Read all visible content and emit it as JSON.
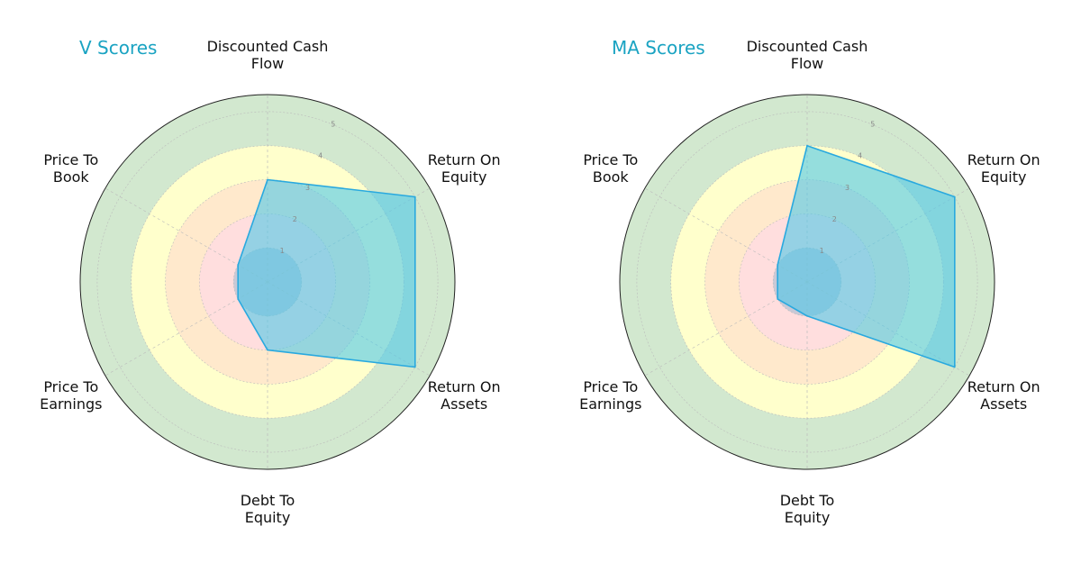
{
  "chart_data": [
    {
      "type": "radar",
      "title": "V Scores",
      "axes": [
        "Discounted Cash\nFlow",
        "Return On\nEquity",
        "Return On\nAssets",
        "Debt To\nEquity",
        "Price To\nEarnings",
        "Price To\nBook"
      ],
      "values": [
        3,
        5,
        5,
        2,
        1,
        1
      ],
      "rlim": [
        0,
        5
      ],
      "rticks": [
        1,
        2,
        3,
        4,
        5
      ],
      "bands": [
        {
          "from": 0,
          "to": 1,
          "color": "#c9c9d6"
        },
        {
          "from": 1,
          "to": 2,
          "color": "#ffdede"
        },
        {
          "from": 2,
          "to": 3,
          "color": "#ffe9cc"
        },
        {
          "from": 3,
          "to": 4,
          "color": "#ffffcc"
        },
        {
          "from": 4,
          "to": 5.5,
          "color": "#d2e8cf"
        }
      ],
      "fill_color": "#4fc8e8",
      "line_color": "#29a9df"
    },
    {
      "type": "radar",
      "title": "MA Scores",
      "axes": [
        "Discounted Cash\nFlow",
        "Return On\nEquity",
        "Return On\nAssets",
        "Debt To\nEquity",
        "Price To\nEarnings",
        "Price To\nBook"
      ],
      "values": [
        4,
        5,
        5,
        1,
        1,
        1
      ],
      "rlim": [
        0,
        5
      ],
      "rticks": [
        1,
        2,
        3,
        4,
        5
      ],
      "bands": [
        {
          "from": 0,
          "to": 1,
          "color": "#c9c9d6"
        },
        {
          "from": 1,
          "to": 2,
          "color": "#ffdede"
        },
        {
          "from": 2,
          "to": 3,
          "color": "#ffe9cc"
        },
        {
          "from": 3,
          "to": 4,
          "color": "#ffffcc"
        },
        {
          "from": 4,
          "to": 5.5,
          "color": "#d2e8cf"
        }
      ],
      "fill_color": "#4fc8e8",
      "line_color": "#29a9df"
    }
  ],
  "colors": {
    "title": "#1aa3c2",
    "outer_ring": "#222222",
    "grid": "#bbbbbb"
  }
}
